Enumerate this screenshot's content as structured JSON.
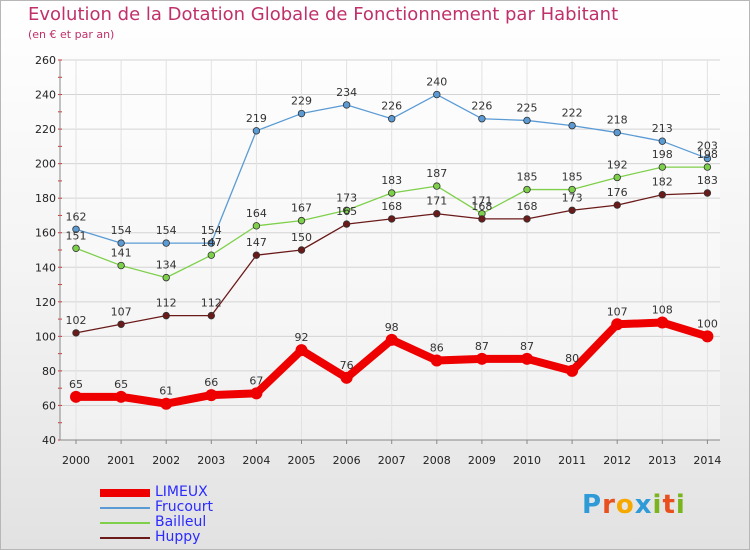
{
  "header": {
    "title": "Evolution de la Dotation Globale de Fonctionnement par Habitant",
    "subtitle": "(en € et par an)"
  },
  "logo": {
    "text": "Proxiti",
    "colors": [
      "#2e9ad7",
      "#e8501e",
      "#f5a800",
      "#2e9ad7",
      "#7ab51d",
      "#e8501e",
      "#7ab51d"
    ]
  },
  "chart_data": {
    "type": "line",
    "title": "Evolution de la Dotation Globale de Fonctionnement par Habitant",
    "subtitle": "(en € et par an)",
    "xlabel": "",
    "ylabel": "",
    "ylim": [
      40,
      260
    ],
    "yticks": [
      40,
      60,
      80,
      100,
      120,
      140,
      160,
      180,
      200,
      220,
      240,
      260
    ],
    "grid": true,
    "legend_position": "bottom-left",
    "x": [
      "2000",
      "2001",
      "2002",
      "2003",
      "2004",
      "2005",
      "2006",
      "2007",
      "2008",
      "2009",
      "2010",
      "2011",
      "2012",
      "2013",
      "2014"
    ],
    "series": [
      {
        "name": "LIMEUX",
        "color": "#ee0000",
        "label_color": "#2b2bff",
        "thick": true,
        "values": [
          65,
          65,
          61,
          66,
          67,
          92,
          76,
          98,
          86,
          87,
          87,
          80,
          107,
          108,
          100
        ]
      },
      {
        "name": "Frucourt",
        "color": "#5b9bd5",
        "label_color": "#2b2bff",
        "thick": false,
        "values": [
          162,
          154,
          154,
          154,
          219,
          229,
          234,
          226,
          240,
          226,
          225,
          222,
          218,
          213,
          203
        ]
      },
      {
        "name": "Bailleul",
        "color": "#7ed04b",
        "label_color": "#2b2bff",
        "thick": false,
        "values": [
          151,
          141,
          134,
          147,
          164,
          167,
          173,
          183,
          187,
          171,
          185,
          185,
          192,
          198,
          198
        ]
      },
      {
        "name": "Huppy",
        "color": "#6b1a1a",
        "label_color": "#2b2bff",
        "thick": false,
        "values": [
          102,
          107,
          112,
          112,
          147,
          150,
          165,
          168,
          171,
          168,
          168,
          173,
          176,
          182,
          183
        ]
      }
    ]
  }
}
